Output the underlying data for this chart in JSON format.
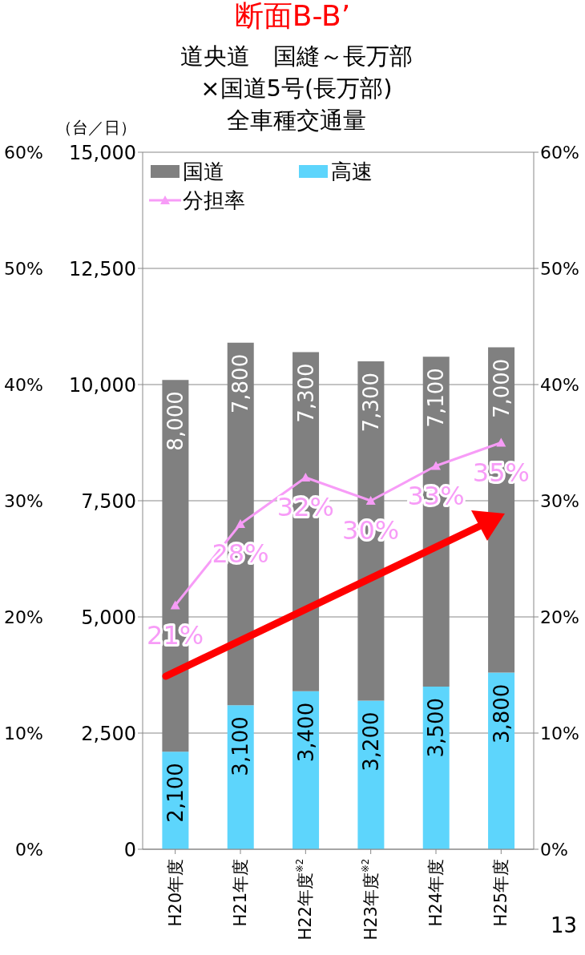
{
  "chart_data": {
    "type": "bar",
    "title": "断面B-B’",
    "subtitle": "道央道　国縫～長万部\n×国道5号(長万部)\n全車種交通量",
    "ylabel": "（台／日）",
    "categories": [
      "H20年度",
      "H21年度",
      "H22年度$^{※2}$",
      "H23年度$^{※2}$",
      "H24年度",
      "H25年度"
    ],
    "series": [
      {
        "name": "高速",
        "color": "#5dd5fc",
        "values": [
          2100,
          3100,
          3400,
          3200,
          3500,
          3800
        ],
        "value_labels": [
          "2,100",
          "3,100",
          "3,400",
          "3,200",
          "3,500",
          "3,800"
        ]
      },
      {
        "name": "国道",
        "color": "#808080",
        "values": [
          8000,
          7800,
          7300,
          7300,
          7100,
          7000
        ],
        "value_labels": [
          "8,000",
          "7,800",
          "7,300",
          "7,300",
          "7,100",
          "7,000"
        ]
      },
      {
        "name": "分担率",
        "type": "line",
        "axis": "y2",
        "color": "#f79cf7",
        "values": [
          21,
          28,
          32,
          30,
          33,
          35
        ],
        "value_labels": [
          "21%",
          "28%",
          "32%",
          "30%",
          "33%",
          "35%"
        ]
      }
    ],
    "stacked": true,
    "ylim": [
      0,
      15000
    ],
    "yticks": [
      0,
      {
        "value": 2500,
        "label": "2,500"
      },
      {
        "value": 5000,
        "label": "5,000"
      },
      {
        "value": 7500,
        "label": "7,500"
      },
      {
        "value": 10000,
        "label": "10,000"
      },
      {
        "value": 12500,
        "label": "12,500"
      },
      {
        "value": 15000,
        "label": "15,000"
      }
    ],
    "y2lim": [
      0,
      60
    ],
    "y2ticks": [
      {
        "value": 0,
        "label": "0%"
      },
      {
        "value": 10,
        "label": "10%"
      },
      {
        "value": 20,
        "label": "20%"
      },
      {
        "value": 30,
        "label": "30%"
      },
      {
        "value": 40,
        "label": "40%"
      },
      {
        "value": 50,
        "label": "50%"
      },
      {
        "value": 60,
        "label": "60%"
      }
    ],
    "y3lim": [
      0,
      60
    ],
    "y3ticks": [
      {
        "value": 0,
        "label": "0%"
      },
      {
        "value": 10,
        "label": "10%"
      },
      {
        "value": 20,
        "label": "20%"
      },
      {
        "value": 30,
        "label": "30%"
      },
      {
        "value": 40,
        "label": "40%"
      },
      {
        "value": 50,
        "label": "50%"
      },
      {
        "value": 60,
        "label": "60%"
      }
    ],
    "grid": "y",
    "legend": "top left",
    "marker": "triangle",
    "line_style": "solid",
    "annotations": [
      "13"
    ]
  }
}
